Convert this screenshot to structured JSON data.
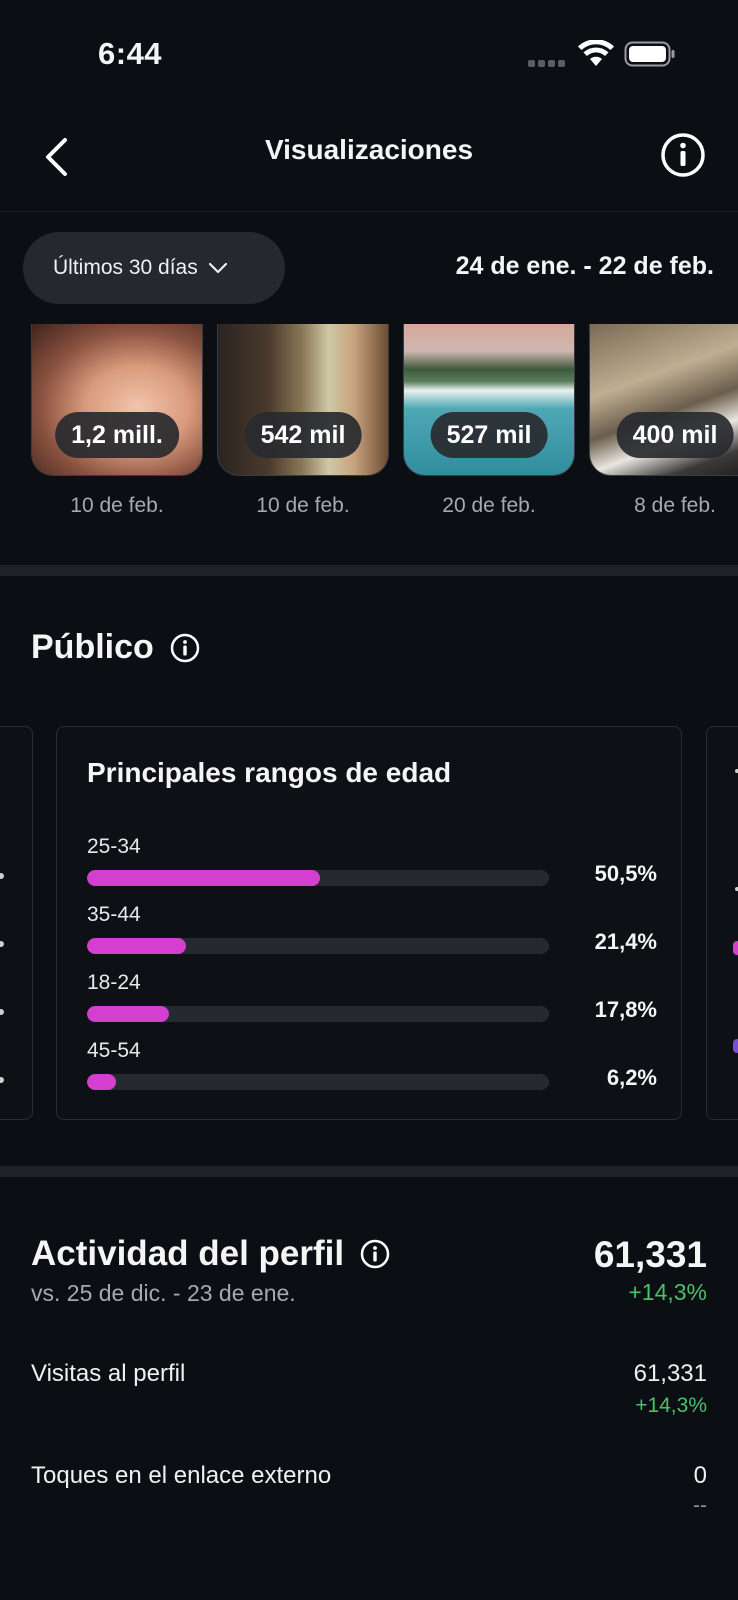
{
  "status_bar": {
    "time": "6:44"
  },
  "header": {
    "title": "Visualizaciones"
  },
  "filter": {
    "period_label": "Últimos 30 días",
    "date_range": "24 de ene. - 22 de feb."
  },
  "top_content": [
    {
      "views": "1,2 mill.",
      "date": "10 de feb."
    },
    {
      "views": "542 mil",
      "date": "10 de feb."
    },
    {
      "views": "527 mil",
      "date": "20 de feb."
    },
    {
      "views": "400 mil",
      "date": "8 de feb."
    }
  ],
  "audience": {
    "title": "Público",
    "age_card": {
      "title": "Principales rangos de edad",
      "rows": [
        {
          "label": "25-34",
          "percent": "50,5%",
          "value": 50.5
        },
        {
          "label": "35-44",
          "percent": "21,4%",
          "value": 21.4
        },
        {
          "label": "18-24",
          "percent": "17,8%",
          "value": 17.8
        },
        {
          "label": "45-54",
          "percent": "6,2%",
          "value": 6.2
        }
      ],
      "bar_color": "#d43fd0"
    }
  },
  "profile_activity": {
    "title": "Actividad del perfil",
    "comparison": "vs. 25 de dic. - 23 de ene.",
    "total": "61,331",
    "total_change": "+14,3%",
    "metrics": [
      {
        "label": "Visitas al perfil",
        "value": "61,331",
        "change": "+14,3%"
      },
      {
        "label": "Toques en el enlace externo",
        "value": "0",
        "change": "--"
      }
    ]
  },
  "colors": {
    "positive": "#4bbf6b",
    "background": "#0b0e13"
  }
}
